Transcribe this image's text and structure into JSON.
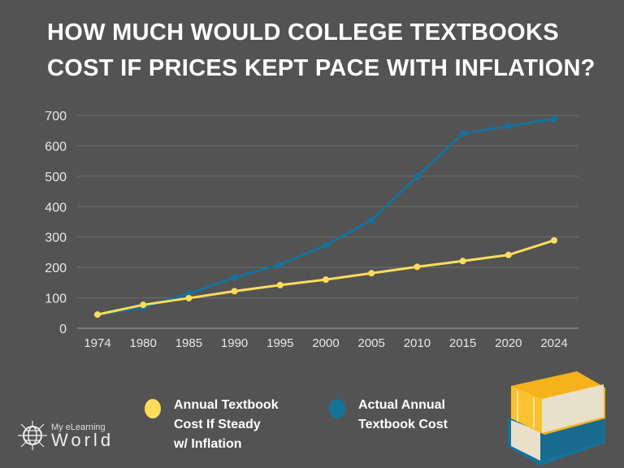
{
  "chart_data": {
    "type": "line",
    "title": "HOW MUCH WOULD COLLEGE TEXTBOOKS COST IF PRICES KEPT PACE WITH INFLATION?",
    "title_lines": [
      "HOW MUCH WOULD COLLEGE TEXTBOOKS",
      "COST IF PRICES KEPT PACE WITH INFLATION?"
    ],
    "categories": [
      "1974",
      "1980",
      "1985",
      "1990",
      "1995",
      "2000",
      "2005",
      "2010",
      "2015",
      "2020",
      "2024"
    ],
    "yticks": [
      0,
      100,
      200,
      300,
      400,
      500,
      600,
      700
    ],
    "ylim": [
      0,
      700
    ],
    "grid": true,
    "legend_placement": "bottom",
    "series": [
      {
        "name": "Annual Textbook Cost If Steady w/ Inflation",
        "legend_text": "Annual Textbook\nCost If Steady\nw/ Inflation",
        "color": "#fddc5c",
        "values": [
          45,
          77,
          99,
          122,
          142,
          160,
          181,
          202,
          221,
          241,
          289
        ]
      },
      {
        "name": "Actual Annual Textbook Cost",
        "legend_text": "Actual Annual\nTextbook Cost",
        "color": "#15729b",
        "values": [
          45,
          69,
          114,
          167,
          209,
          273,
          355,
          499,
          640,
          665,
          688
        ]
      }
    ]
  },
  "logo": {
    "line1": "My eLearning",
    "line2": "World"
  },
  "colors": {
    "background": "#535353",
    "grid": "#6e6e6e",
    "text": "#ffffff"
  }
}
